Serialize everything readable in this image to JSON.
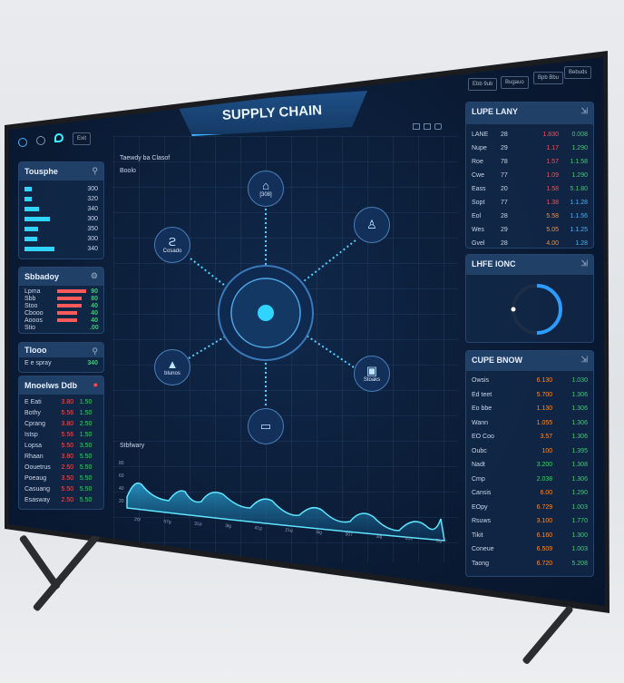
{
  "header": {
    "title": "SUPPLY CHAIN",
    "top_buttons": [
      "Ebb 9ub",
      "Bugauo",
      "Bpb Bbu",
      "Bebuds"
    ],
    "left_button": "Exit",
    "view_icons": [
      "grid-icon",
      "layers-icon",
      "window-icon"
    ]
  },
  "network": {
    "label": "Taewdy ba Clasof",
    "sublabel": "Boolo",
    "hub_color": "#2fd4ff",
    "nodes": [
      {
        "label": "[308]",
        "icon": "warehouse-icon"
      },
      {
        "label": "",
        "icon": "factory-icon"
      },
      {
        "label": "Cosado",
        "icon": "supplier-icon"
      },
      {
        "label": "blunos",
        "icon": "distribution-icon"
      },
      {
        "label": "Stoaks",
        "icon": "store-icon"
      },
      {
        "label": "",
        "icon": "truck-icon"
      }
    ]
  },
  "wave": {
    "title": "Stbfwary",
    "y_ticks": [
      "80",
      "60",
      "40",
      "20"
    ],
    "x_ticks": [
      "20l",
      "57g",
      "31p",
      "3lg",
      "41g",
      "21g",
      "5lg",
      "307",
      "3lg",
      "31s",
      "3lg"
    ]
  },
  "left": {
    "bars": {
      "title": "Tousphe",
      "values": [
        0.13,
        0.12,
        0.25,
        0.44,
        0.24,
        0.22,
        0.52
      ],
      "labels": [
        "300",
        "320",
        "340",
        "300",
        "350",
        "300",
        "340"
      ]
    },
    "shortage": {
      "title": "Sbbadoy",
      "rows": [
        {
          "name": "Lpma",
          "fill": 0.9,
          "val": "90"
        },
        {
          "name": "Sbb",
          "fill": 0.75,
          "val": "80"
        },
        {
          "name": "Stoo",
          "fill": 0.75,
          "val": "40"
        },
        {
          "name": "Cbooo",
          "fill": 0.62,
          "val": "40"
        },
        {
          "name": "Aooos",
          "fill": 0.62,
          "val": "40"
        },
        {
          "name": "Stio",
          "fill": 0.0,
          "val": ".00"
        }
      ]
    },
    "timer": {
      "title": "Tlooo",
      "label": "E e spray",
      "value": "340"
    },
    "orders": {
      "title": "Mnoelws Ddb",
      "rows": [
        [
          "E Eati",
          "3.80",
          "1.50"
        ],
        [
          "Bothy",
          "5.56",
          "1.50"
        ],
        [
          "Cprang",
          "3.80",
          "2.50"
        ],
        [
          "Istsp",
          "5.56",
          "1.50"
        ],
        [
          "Lopsa",
          "5.50",
          "3.50"
        ],
        [
          "Rhaan",
          "3.80",
          "5.50"
        ],
        [
          "Oouetrus",
          "2.50",
          "5.50"
        ],
        [
          "Poeaug",
          "3.50",
          "5.50"
        ],
        [
          "Casuang",
          "5.50",
          "5.50"
        ],
        [
          "Esasway",
          "2.50",
          "5.50"
        ]
      ]
    }
  },
  "right": {
    "stock": {
      "title": "LUPE LANY",
      "rows": [
        [
          "LANE",
          "28",
          "1.830",
          "0.008"
        ],
        [
          "Nupe",
          "29",
          "1.17",
          "1.290"
        ],
        [
          "Roe",
          "78",
          "1.57",
          "1.1.58"
        ],
        [
          "Cwe",
          "77",
          "1.09",
          "1.290"
        ],
        [
          "Eass",
          "20",
          "1.58",
          "5.1.80"
        ],
        [
          "Sopt",
          "77",
          "1.38",
          "1.1.28"
        ],
        [
          "Eol",
          "28",
          "5.58",
          "1.1.56"
        ],
        [
          "Wes",
          "29",
          "5.05",
          "1.1.25"
        ],
        [
          "Gvel",
          "28",
          "4.00",
          "1.28"
        ]
      ]
    },
    "gauge": {
      "title": "LHFE IONC",
      "fraction": 0.5
    },
    "inventory": {
      "title": "CUPE BNOW",
      "rows": [
        [
          "Owsis",
          "6.130",
          "1.030"
        ],
        [
          "Ed teet",
          "5.700",
          "1.306"
        ],
        [
          "Eo bbe",
          "1.130",
          "1.306"
        ],
        [
          "Wann",
          "1.055",
          "1.306"
        ],
        [
          "EO Coo",
          "3.57",
          "1.306"
        ],
        [
          "Oubc",
          "100",
          "1.395"
        ],
        [
          "Nadt",
          "3.200",
          "1.308"
        ],
        [
          "Cmp",
          "2.038",
          "1.306"
        ],
        [
          "Cansis",
          "6.00",
          "1.290"
        ],
        [
          "EOpy",
          "6.729",
          "1.003"
        ],
        [
          "Rsuws",
          "3.100",
          "1.770"
        ],
        [
          "Tikit",
          "6.160",
          "1.300"
        ],
        [
          "Coneue",
          "6.509",
          "1.003"
        ],
        [
          "Taong",
          "6.720",
          "5.208"
        ]
      ],
      "mid_colors": [
        "orange",
        "orange",
        "orange",
        "orange",
        "orange",
        "orange",
        "green",
        "green",
        "orange",
        "orange",
        "orange",
        "orange",
        "orange",
        "orange"
      ]
    }
  }
}
